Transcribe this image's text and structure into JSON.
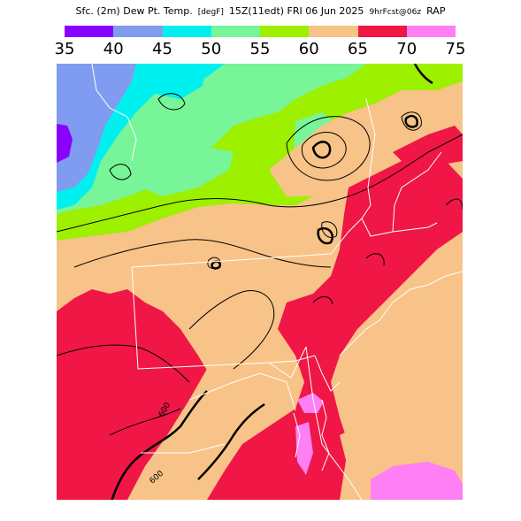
{
  "header": {
    "field": "Sfc. (2m) Dew Pt. Temp.",
    "units": "[degF]",
    "valid": "15Z(11edt) FRI 06 Jun 2025",
    "run": "9hrFcst@06z",
    "model": "RAP"
  },
  "colorbar": {
    "labels": [
      "35",
      "40",
      "45",
      "50",
      "55",
      "60",
      "65",
      "70",
      "75"
    ],
    "colors": [
      "#8a00ff",
      "#7f9cf0",
      "#00f0f0",
      "#77f598",
      "#9cf000",
      "#f8c388",
      "#f01646",
      "#ff7ff5"
    ]
  },
  "map": {
    "contour_labels": [
      "600",
      "600"
    ],
    "palette": {
      "dp35": "#8a00ff",
      "dp40": "#7f9cf0",
      "dp45": "#00f0f0",
      "dp50": "#77f598",
      "dp55": "#9cf000",
      "dp60": "#f8c388",
      "dp65": "#f01646",
      "dp70": "#ff7ff5"
    }
  }
}
